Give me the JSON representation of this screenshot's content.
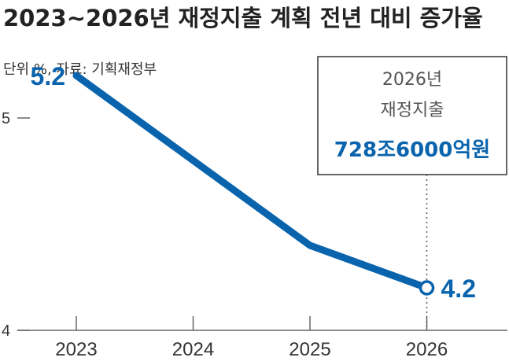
{
  "chart_data": {
    "type": "line",
    "title": "2023~2026년 재정지출 계획 전년 대비 증가율",
    "subtitle": "단위 %, 자료: 기획재정부",
    "categories": [
      "2023",
      "2024",
      "2025",
      "2026"
    ],
    "series": [
      {
        "values": [
          5.2,
          4.8,
          4.4,
          4.2
        ]
      }
    ],
    "data_labels": [
      {
        "index": 0,
        "text": "5.2"
      },
      {
        "index": 3,
        "text": "4.2"
      }
    ],
    "y_ticks": [
      "4",
      "5"
    ],
    "ylim": [
      4,
      5.45
    ],
    "annotation": {
      "line1": "2026년",
      "line2": "재정지출",
      "value": "728조6000억원"
    },
    "colors": {
      "series": "#0a64ad",
      "axis": "#666666",
      "annotation_border": "#333333",
      "annotation_value": "#0a64ad"
    }
  }
}
